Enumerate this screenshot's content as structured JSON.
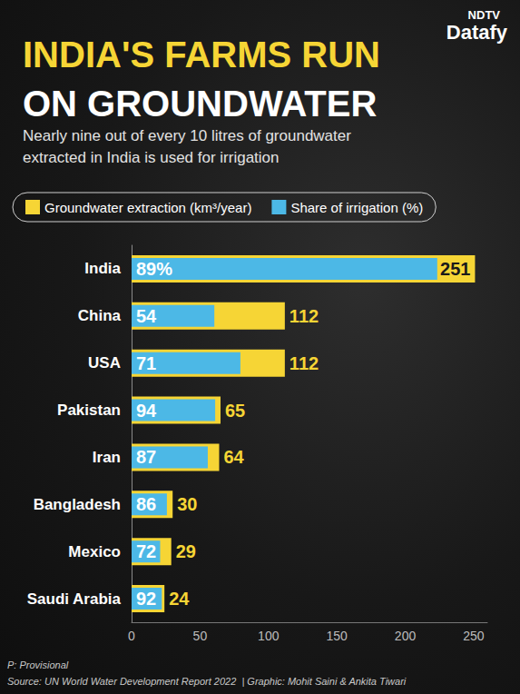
{
  "chart_data": {
    "type": "bar",
    "title": "INDIA'S FARMS RUN\nON GROUNDWATER",
    "subtitle": "Nearly nine out of every 10 litres of groundwater\nextracted in India is used for irrigation",
    "annotations": [
      "NDTV",
      "Datafy",
      "P: Provisional",
      "Source: UN World Water Development Report 2022  | Graphic: Mohit Saini & Ankita Tiwari"
    ],
    "orientation": "horizontal",
    "categories": [
      "India",
      "China",
      "USA",
      "Pakistan",
      "Iran",
      "Bangladesh",
      "Mexico",
      "Saudi Arabia"
    ],
    "series": [
      {
        "name": "Groundwater extraction (km³/year)",
        "color": "#f6d535",
        "values": [
          251,
          112,
          112,
          65,
          64,
          30,
          29,
          24
        ]
      },
      {
        "name": "Share of irrigation (%)",
        "color": "#4cb8e6",
        "values": [
          89,
          54,
          71,
          94,
          87,
          86,
          72,
          92
        ],
        "value_labels": [
          "89%",
          "54",
          "71",
          "94",
          "87",
          "86",
          "72",
          "92"
        ]
      }
    ],
    "xlim": [
      0,
      260
    ],
    "xticks": [
      0,
      50,
      100,
      150,
      200,
      250
    ],
    "grid": false,
    "legend": "top",
    "data_labels": true
  }
}
